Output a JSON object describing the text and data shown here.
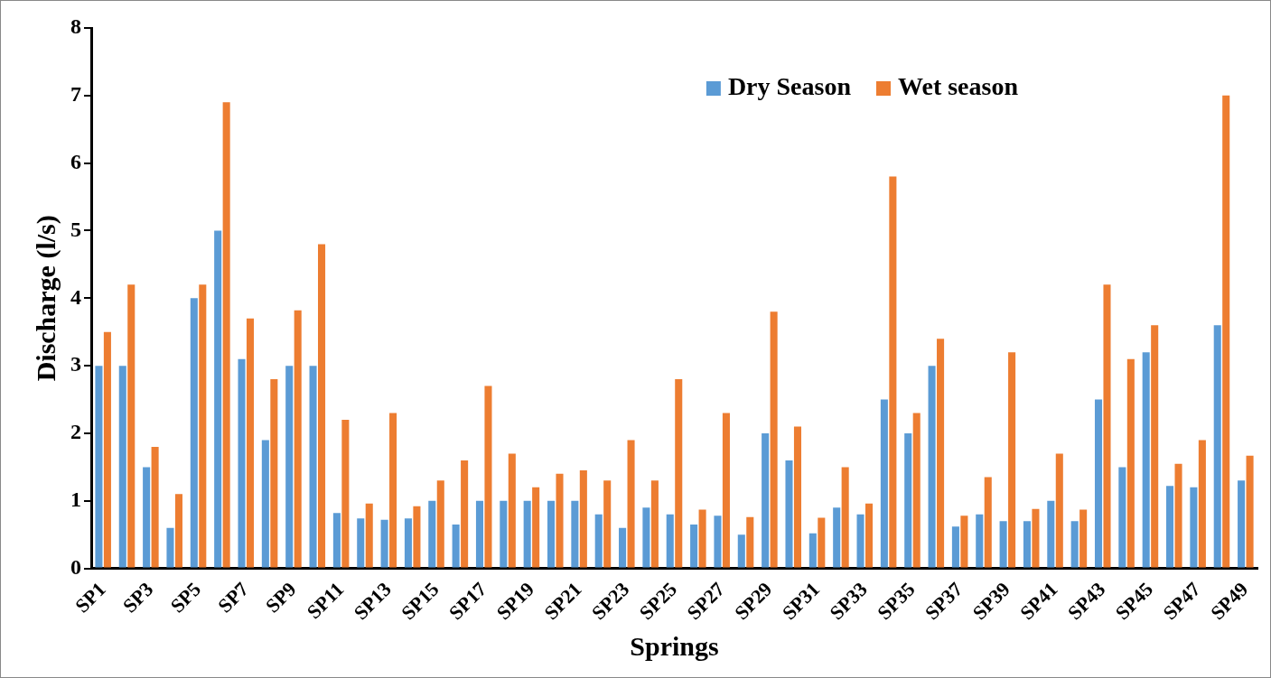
{
  "chart_data": {
    "type": "bar",
    "xlabel": "Springs",
    "ylabel": "Discharge (l/s)",
    "categories": [
      "SP1",
      null,
      "SP3",
      null,
      "SP5",
      null,
      "SP7",
      null,
      "SP9",
      null,
      "SP11",
      null,
      "SP13",
      null,
      "SP15",
      null,
      "SP17",
      null,
      "SP19",
      null,
      "SP21",
      null,
      "SP23",
      null,
      "SP25",
      null,
      "SP27",
      null,
      "SP29",
      null,
      "SP31",
      null,
      "SP33",
      null,
      "SP35",
      null,
      "SP37",
      null,
      "SP39",
      null,
      "SP41",
      null,
      "SP43",
      null,
      "SP45",
      null,
      "SP47",
      null,
      "SP49"
    ],
    "series": [
      {
        "name": "Dry Season",
        "color": "#5b9bd5",
        "values": [
          3.0,
          3.0,
          1.5,
          0.6,
          4.0,
          5.0,
          3.1,
          1.9,
          3.0,
          3.0,
          0.82,
          0.74,
          0.72,
          0.74,
          1.0,
          0.65,
          1.0,
          1.0,
          1.0,
          1.0,
          1.0,
          0.8,
          0.6,
          0.9,
          0.8,
          0.65,
          0.78,
          0.5,
          2.0,
          1.6,
          0.52,
          0.9,
          0.8,
          2.5,
          2.0,
          3.0,
          0.62,
          0.8,
          0.7,
          0.7,
          1.0,
          0.7,
          2.5,
          1.5,
          3.2,
          1.22,
          1.2,
          3.6,
          1.3
        ]
      },
      {
        "name": "Wet season",
        "color": "#ed7d31",
        "values": [
          3.5,
          4.2,
          1.8,
          1.1,
          4.2,
          6.9,
          3.7,
          2.8,
          3.82,
          4.8,
          2.2,
          0.96,
          2.3,
          0.92,
          1.3,
          1.6,
          2.7,
          1.7,
          1.2,
          1.4,
          1.45,
          1.3,
          1.9,
          1.3,
          2.8,
          0.87,
          2.3,
          0.76,
          3.8,
          2.1,
          0.75,
          1.5,
          0.96,
          5.8,
          2.3,
          3.4,
          0.78,
          1.35,
          3.2,
          0.88,
          1.7,
          0.87,
          4.2,
          3.1,
          3.6,
          1.55,
          1.9,
          7.0,
          1.67
        ]
      }
    ],
    "ylim": [
      0,
      8
    ],
    "yticks": [
      0,
      1,
      2,
      3,
      4,
      5,
      6,
      7,
      8
    ],
    "grid": false,
    "legend": "top right"
  }
}
